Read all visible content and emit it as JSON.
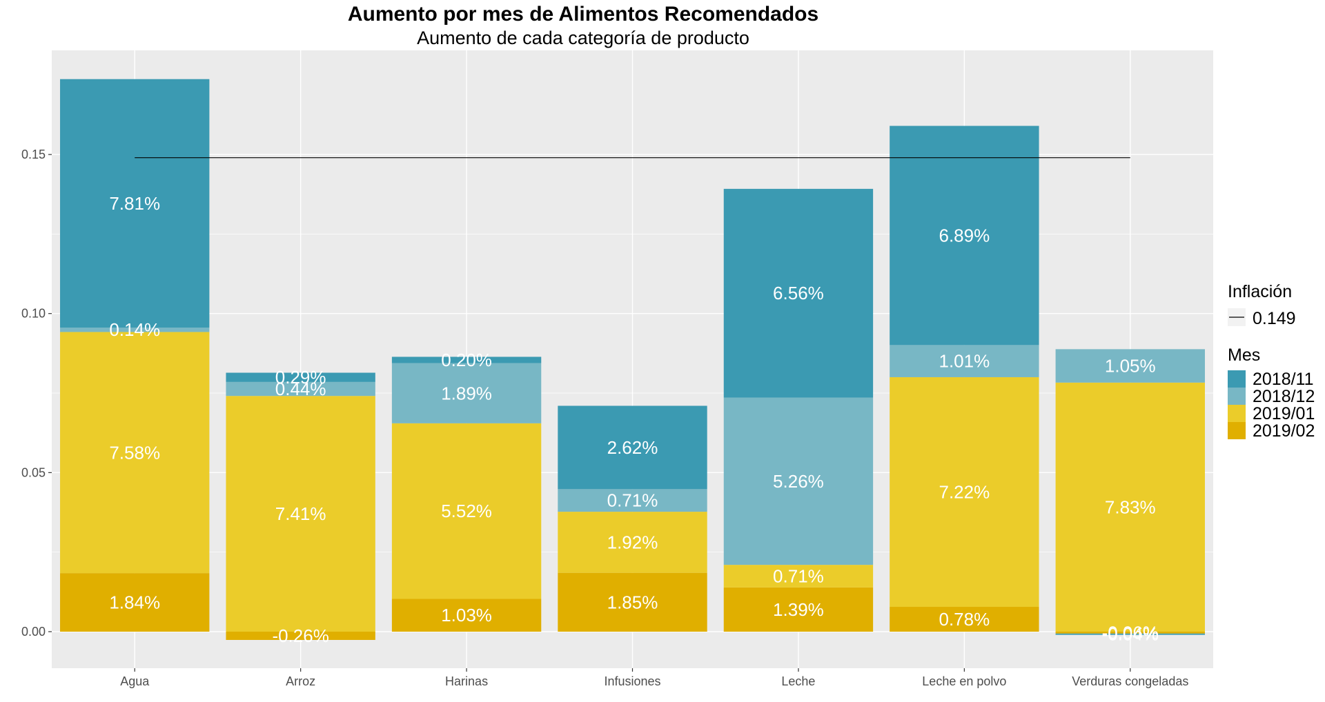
{
  "chart_data": {
    "type": "bar",
    "stacked": true,
    "title": "Aumento por mes de Alimentos Recomendados",
    "subtitle": "Aumento de cada categoría de producto",
    "xlabel": "",
    "ylabel": "",
    "ylim": [
      -0.01,
      0.18
    ],
    "yticks": [
      0.0,
      0.05,
      0.1,
      0.15
    ],
    "ytick_labels": [
      "0.00",
      "0.05",
      "0.10",
      "0.15"
    ],
    "grid": true,
    "categories": [
      "Agua",
      "Arroz",
      "Harinas",
      "Infusiones",
      "Leche",
      "Leche en polvo",
      "Verduras congeladas"
    ],
    "series": [
      {
        "name": "2019/02",
        "color": "#E0AF00",
        "values": [
          0.0184,
          -0.0026,
          0.0103,
          0.0185,
          0.0139,
          0.0078,
          -0.0006
        ],
        "labels": [
          "1.84%",
          "-0.26%",
          "1.03%",
          "1.85%",
          "1.39%",
          "0.78%",
          "-0.06%"
        ]
      },
      {
        "name": "2019/01",
        "color": "#EBCC2A",
        "values": [
          0.0758,
          0.0741,
          0.0552,
          0.0192,
          0.0071,
          0.0722,
          0.0783
        ],
        "labels": [
          "7.58%",
          "7.41%",
          "5.52%",
          "1.92%",
          "0.71%",
          "7.22%",
          "7.83%"
        ]
      },
      {
        "name": "2018/12",
        "color": "#78B7C5",
        "values": [
          0.0014,
          0.0044,
          0.0189,
          0.0071,
          0.0526,
          0.0101,
          0.0105
        ],
        "labels": [
          "0.14%",
          "0.44%",
          "1.89%",
          "0.71%",
          "5.26%",
          "1.01%",
          "1.05%"
        ]
      },
      {
        "name": "2018/11",
        "color": "#3B9AB2",
        "values": [
          0.0781,
          0.0029,
          0.002,
          0.0262,
          0.0656,
          0.0689,
          -0.0004
        ],
        "labels": [
          "7.81%",
          "0.29%",
          "0.20%",
          "2.62%",
          "6.56%",
          "6.89%",
          "-0.04%"
        ]
      }
    ],
    "reference_line": {
      "name": "0.149",
      "value": 0.149,
      "from": "Agua",
      "to": "Verduras congeladas"
    },
    "legend": {
      "position": "right",
      "inflation_title": "Inflación",
      "inflation_label": "0.149",
      "month_title": "Mes",
      "month_order": [
        "2018/11",
        "2018/12",
        "2019/01",
        "2019/02"
      ]
    }
  }
}
